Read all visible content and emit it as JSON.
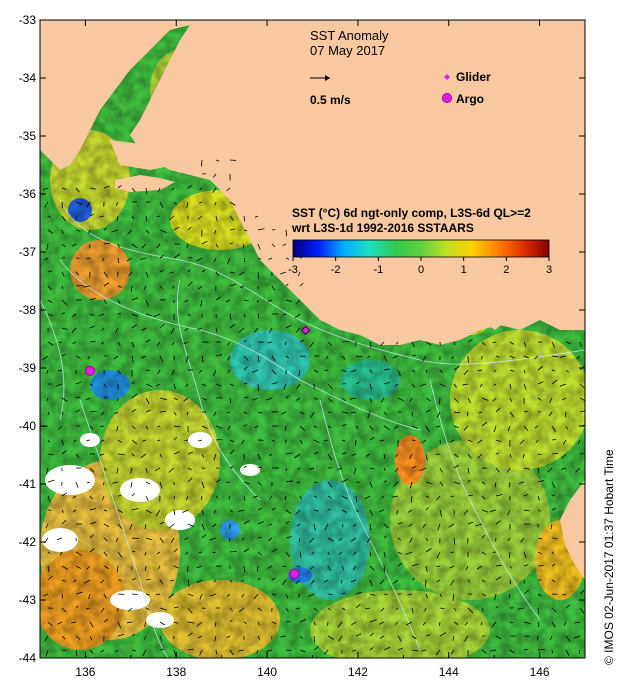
{
  "title": {
    "line1": "SST Anomaly",
    "line2": "07 May 2017"
  },
  "vector_legend": {
    "label": "0.5 m/s"
  },
  "symbol_legend": {
    "glider": {
      "label": "Glider",
      "color": "#e020e0"
    },
    "argo": {
      "label": "Argo",
      "color": "#e020e0"
    }
  },
  "colorbar": {
    "title_line1": "SST (°C) 6d ngt-only comp, L3S-6d QL>=2",
    "title_line2": "wrt L3S-1d 1992-2016 SSTAARS",
    "ticks": [
      "-3",
      "-2",
      "-1",
      "0",
      "1",
      "2",
      "3"
    ],
    "range": [
      -3,
      3
    ],
    "colors": [
      "#00007f",
      "#0020ff",
      "#00b0ff",
      "#20e0c0",
      "#30c850",
      "#60d040",
      "#c0e020",
      "#ffd000",
      "#ff8000",
      "#e03000",
      "#800000"
    ]
  },
  "axes": {
    "x_ticks": [
      "136",
      "138",
      "140",
      "142",
      "144",
      "146"
    ],
    "y_ticks": [
      "-33",
      "-34",
      "-35",
      "-36",
      "-37",
      "-38",
      "-39",
      "-40",
      "-41",
      "-42",
      "-43",
      "-44"
    ],
    "xlim": [
      135,
      147
    ],
    "ylim": [
      -44,
      -33
    ]
  },
  "markers": {
    "argo": [
      {
        "lon": 136.1,
        "lat": -39.05
      },
      {
        "lon": 140.6,
        "lat": -42.55
      }
    ],
    "glider": [
      {
        "lon": 140.85,
        "lat": -38.35
      }
    ]
  },
  "credit": "©  IMOS 02-Jun-2017 01:37 Hobart Time",
  "colors": {
    "land": "#f8c8a0",
    "ocean_base": "#40c040"
  }
}
